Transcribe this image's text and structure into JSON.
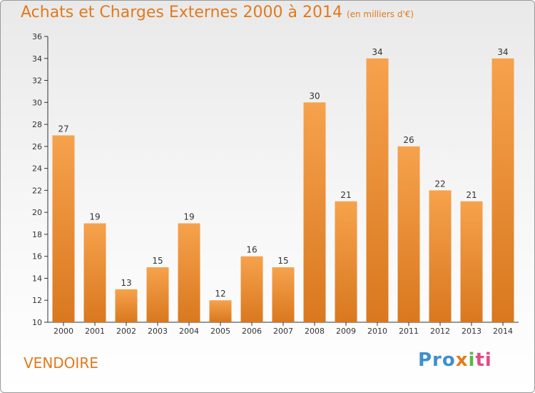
{
  "title": "Achats et Charges Externes 2000 à 2014",
  "subtitle": "(en milliers d'€)",
  "city": "VENDOIRE",
  "logo": {
    "p1": "Pro",
    "p2": "x",
    "p3": "i",
    "p4": "ti"
  },
  "colors": {
    "bar_top": "#f6a24c",
    "bar_bottom": "#d9781f",
    "accent": "#e07a1e"
  },
  "chart_data": {
    "type": "bar",
    "title": "Achats et Charges Externes 2000 à 2014",
    "subtitle": "(en milliers d'€)",
    "categories": [
      "2000",
      "2001",
      "2002",
      "2003",
      "2004",
      "2005",
      "2006",
      "2007",
      "2008",
      "2009",
      "2010",
      "2011",
      "2012",
      "2013",
      "2014"
    ],
    "values": [
      27,
      19,
      13,
      15,
      19,
      12,
      16,
      15,
      30,
      21,
      34,
      26,
      22,
      21,
      34
    ],
    "ylim": [
      10,
      36
    ],
    "yticks": [
      10,
      12,
      14,
      16,
      18,
      20,
      22,
      24,
      26,
      28,
      30,
      32,
      34,
      36
    ],
    "grid": false
  }
}
